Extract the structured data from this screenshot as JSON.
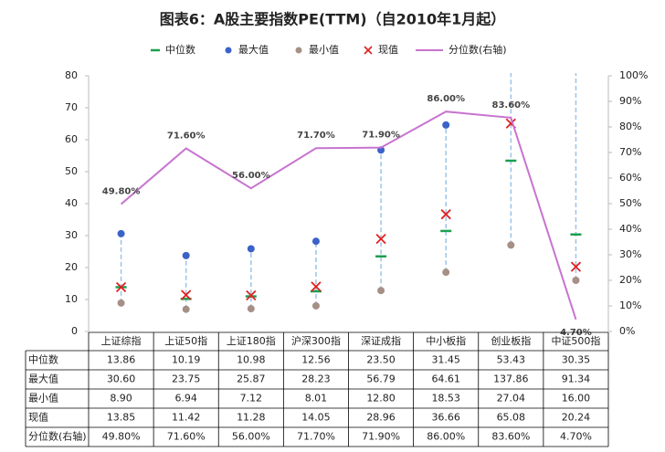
{
  "chart_data": {
    "type": "combo",
    "title": "图表6：A股主要指数PE(TTM)（自2010年1月起）",
    "categories": [
      "上证综指",
      "上证50指",
      "上证180指",
      "沪深300指",
      "深证成指",
      "中小板指",
      "创业板指",
      "中证500指"
    ],
    "series": [
      {
        "name": "中位数",
        "kind": "dash",
        "color": "#1aa050",
        "values": [
          13.86,
          10.19,
          10.98,
          12.56,
          23.5,
          31.45,
          53.43,
          30.35
        ],
        "value_labels": [
          "13.86",
          "10.19",
          "10.98",
          "12.56",
          "23.50",
          "31.45",
          "53.43",
          "30.35"
        ]
      },
      {
        "name": "最大值",
        "kind": "dot",
        "color": "#3a62c8",
        "values": [
          30.6,
          23.75,
          25.87,
          28.23,
          56.79,
          64.61,
          137.86,
          91.34
        ],
        "value_labels": [
          "30.60",
          "23.75",
          "25.87",
          "28.23",
          "56.79",
          "64.61",
          "137.86",
          "91.34"
        ]
      },
      {
        "name": "最小值",
        "kind": "dot",
        "color": "#a69086",
        "values": [
          8.9,
          6.94,
          7.12,
          8.01,
          12.8,
          18.53,
          27.04,
          16.0
        ],
        "value_labels": [
          "8.90",
          "6.94",
          "7.12",
          "8.01",
          "12.80",
          "18.53",
          "27.04",
          "16.00"
        ]
      },
      {
        "name": "现值",
        "kind": "cross",
        "color": "#e02020",
        "values": [
          13.85,
          11.42,
          11.28,
          14.05,
          28.96,
          36.66,
          65.08,
          20.24
        ],
        "value_labels": [
          "13.85",
          "11.42",
          "11.28",
          "14.05",
          "28.96",
          "36.66",
          "65.08",
          "20.24"
        ]
      },
      {
        "name": "分位数(右轴)",
        "kind": "line",
        "axis": "y2",
        "color": "#c774cf",
        "values": [
          49.8,
          71.6,
          56.0,
          71.7,
          71.9,
          86.0,
          83.6,
          4.7
        ],
        "value_labels": [
          "49.80%",
          "71.60%",
          "56.00%",
          "71.70%",
          "71.90%",
          "86.00%",
          "83.60%",
          "4.70%"
        ]
      }
    ],
    "ylim": [
      0,
      80
    ],
    "yticks": [
      0,
      10,
      20,
      30,
      40,
      50,
      60,
      70,
      80
    ],
    "y2lim": [
      0,
      100
    ],
    "y2ticks": [
      {
        "value": 0,
        "label": "0%"
      },
      {
        "value": 10,
        "label": "10%"
      },
      {
        "value": 20,
        "label": "20%"
      },
      {
        "value": 30,
        "label": "30%"
      },
      {
        "value": 40,
        "label": "40%"
      },
      {
        "value": 50,
        "label": "50%"
      },
      {
        "value": 60,
        "label": "60%"
      },
      {
        "value": 70,
        "label": "70%"
      },
      {
        "value": 80,
        "label": "80%"
      },
      {
        "value": 90,
        "label": "90%"
      },
      {
        "value": 100,
        "label": "100%"
      }
    ],
    "range_color": "#9cc3e8",
    "legend": "top"
  }
}
